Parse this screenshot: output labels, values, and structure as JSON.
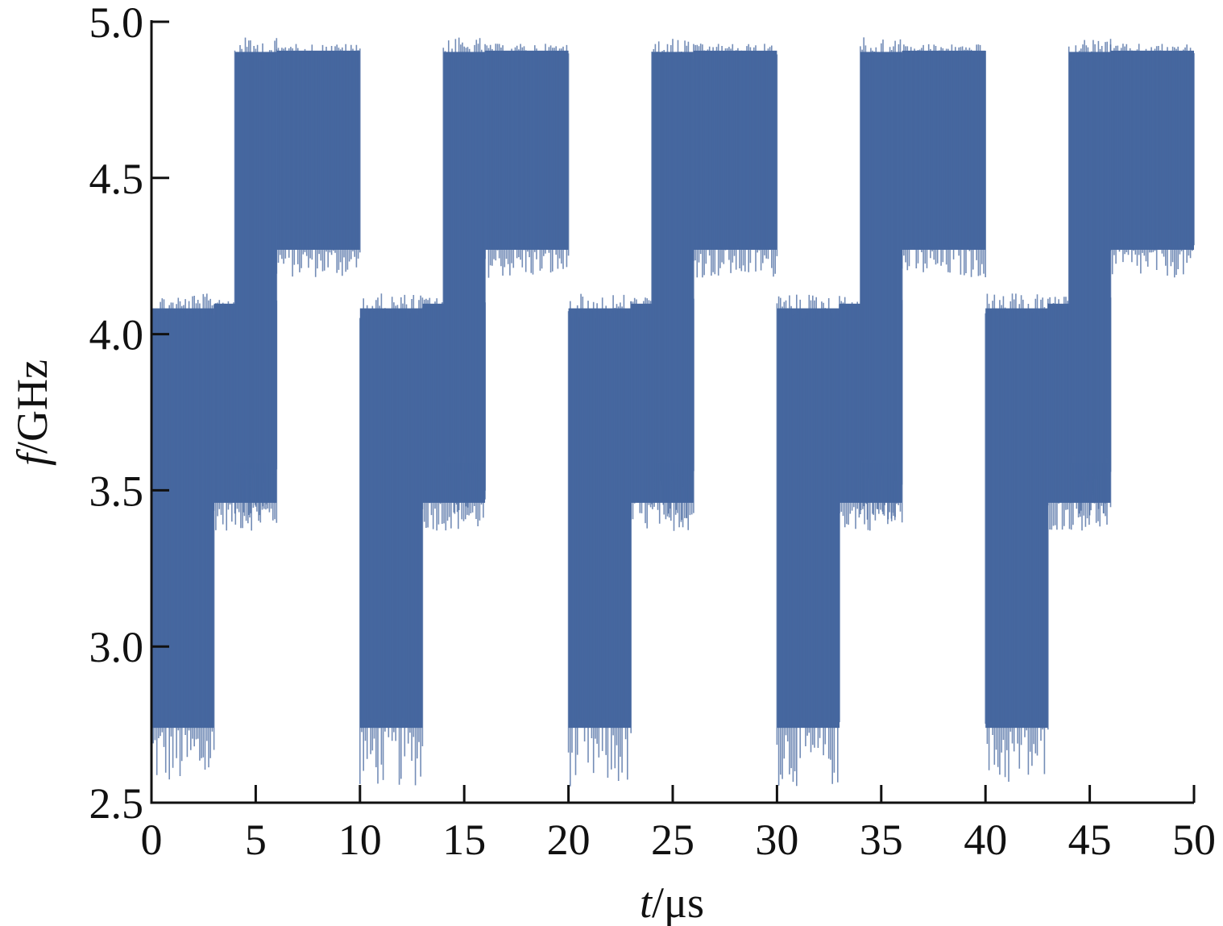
{
  "chart_data": {
    "type": "line",
    "xlabel": {
      "symbol": "t",
      "unit": "/μs"
    },
    "ylabel": {
      "symbol": "f",
      "unit": "/GHz"
    },
    "xlim": [
      0,
      50
    ],
    "ylim": [
      2.5,
      5.0
    ],
    "x_ticks": [
      "0",
      "5",
      "10",
      "15",
      "20",
      "25",
      "30",
      "35",
      "40",
      "45",
      "50"
    ],
    "y_ticks": [
      "2.5",
      "3.0",
      "3.5",
      "4.0",
      "4.5",
      "5.0"
    ],
    "grid": false,
    "legend": "none",
    "period_us": 10,
    "series": [
      {
        "color": "#46679f",
        "segments": [
          {
            "t_start": 0,
            "t_end": 3,
            "f_min": 2.55,
            "f_max": 4.13
          },
          {
            "t_start": 3,
            "t_end": 6,
            "f_min": 3.37,
            "f_max": 4.12
          },
          {
            "t_start": 4,
            "t_end": 6,
            "f_min": 3.4,
            "f_max": 4.95
          },
          {
            "t_start": 6,
            "t_end": 10,
            "f_min": 4.18,
            "f_max": 4.93
          },
          {
            "t_start": 10,
            "t_end": 13,
            "f_min": 2.55,
            "f_max": 4.13
          },
          {
            "t_start": 13,
            "t_end": 16,
            "f_min": 3.37,
            "f_max": 4.12
          },
          {
            "t_start": 14,
            "t_end": 16,
            "f_min": 3.4,
            "f_max": 4.95
          },
          {
            "t_start": 16,
            "t_end": 20,
            "f_min": 4.18,
            "f_max": 4.93
          },
          {
            "t_start": 20,
            "t_end": 23,
            "f_min": 2.55,
            "f_max": 4.13
          },
          {
            "t_start": 23,
            "t_end": 26,
            "f_min": 3.37,
            "f_max": 4.12
          },
          {
            "t_start": 24,
            "t_end": 26,
            "f_min": 3.4,
            "f_max": 4.95
          },
          {
            "t_start": 26,
            "t_end": 30,
            "f_min": 4.18,
            "f_max": 4.93
          },
          {
            "t_start": 30,
            "t_end": 33,
            "f_min": 2.55,
            "f_max": 4.13
          },
          {
            "t_start": 33,
            "t_end": 36,
            "f_min": 3.37,
            "f_max": 4.12
          },
          {
            "t_start": 34,
            "t_end": 36,
            "f_min": 3.4,
            "f_max": 4.95
          },
          {
            "t_start": 36,
            "t_end": 40,
            "f_min": 4.18,
            "f_max": 4.93
          },
          {
            "t_start": 40,
            "t_end": 43,
            "f_min": 2.55,
            "f_max": 4.13
          },
          {
            "t_start": 43,
            "t_end": 46,
            "f_min": 3.37,
            "f_max": 4.12
          },
          {
            "t_start": 44,
            "t_end": 46,
            "f_min": 3.4,
            "f_max": 4.95
          },
          {
            "t_start": 46,
            "t_end": 50,
            "f_min": 4.18,
            "f_max": 4.93
          }
        ]
      }
    ]
  }
}
